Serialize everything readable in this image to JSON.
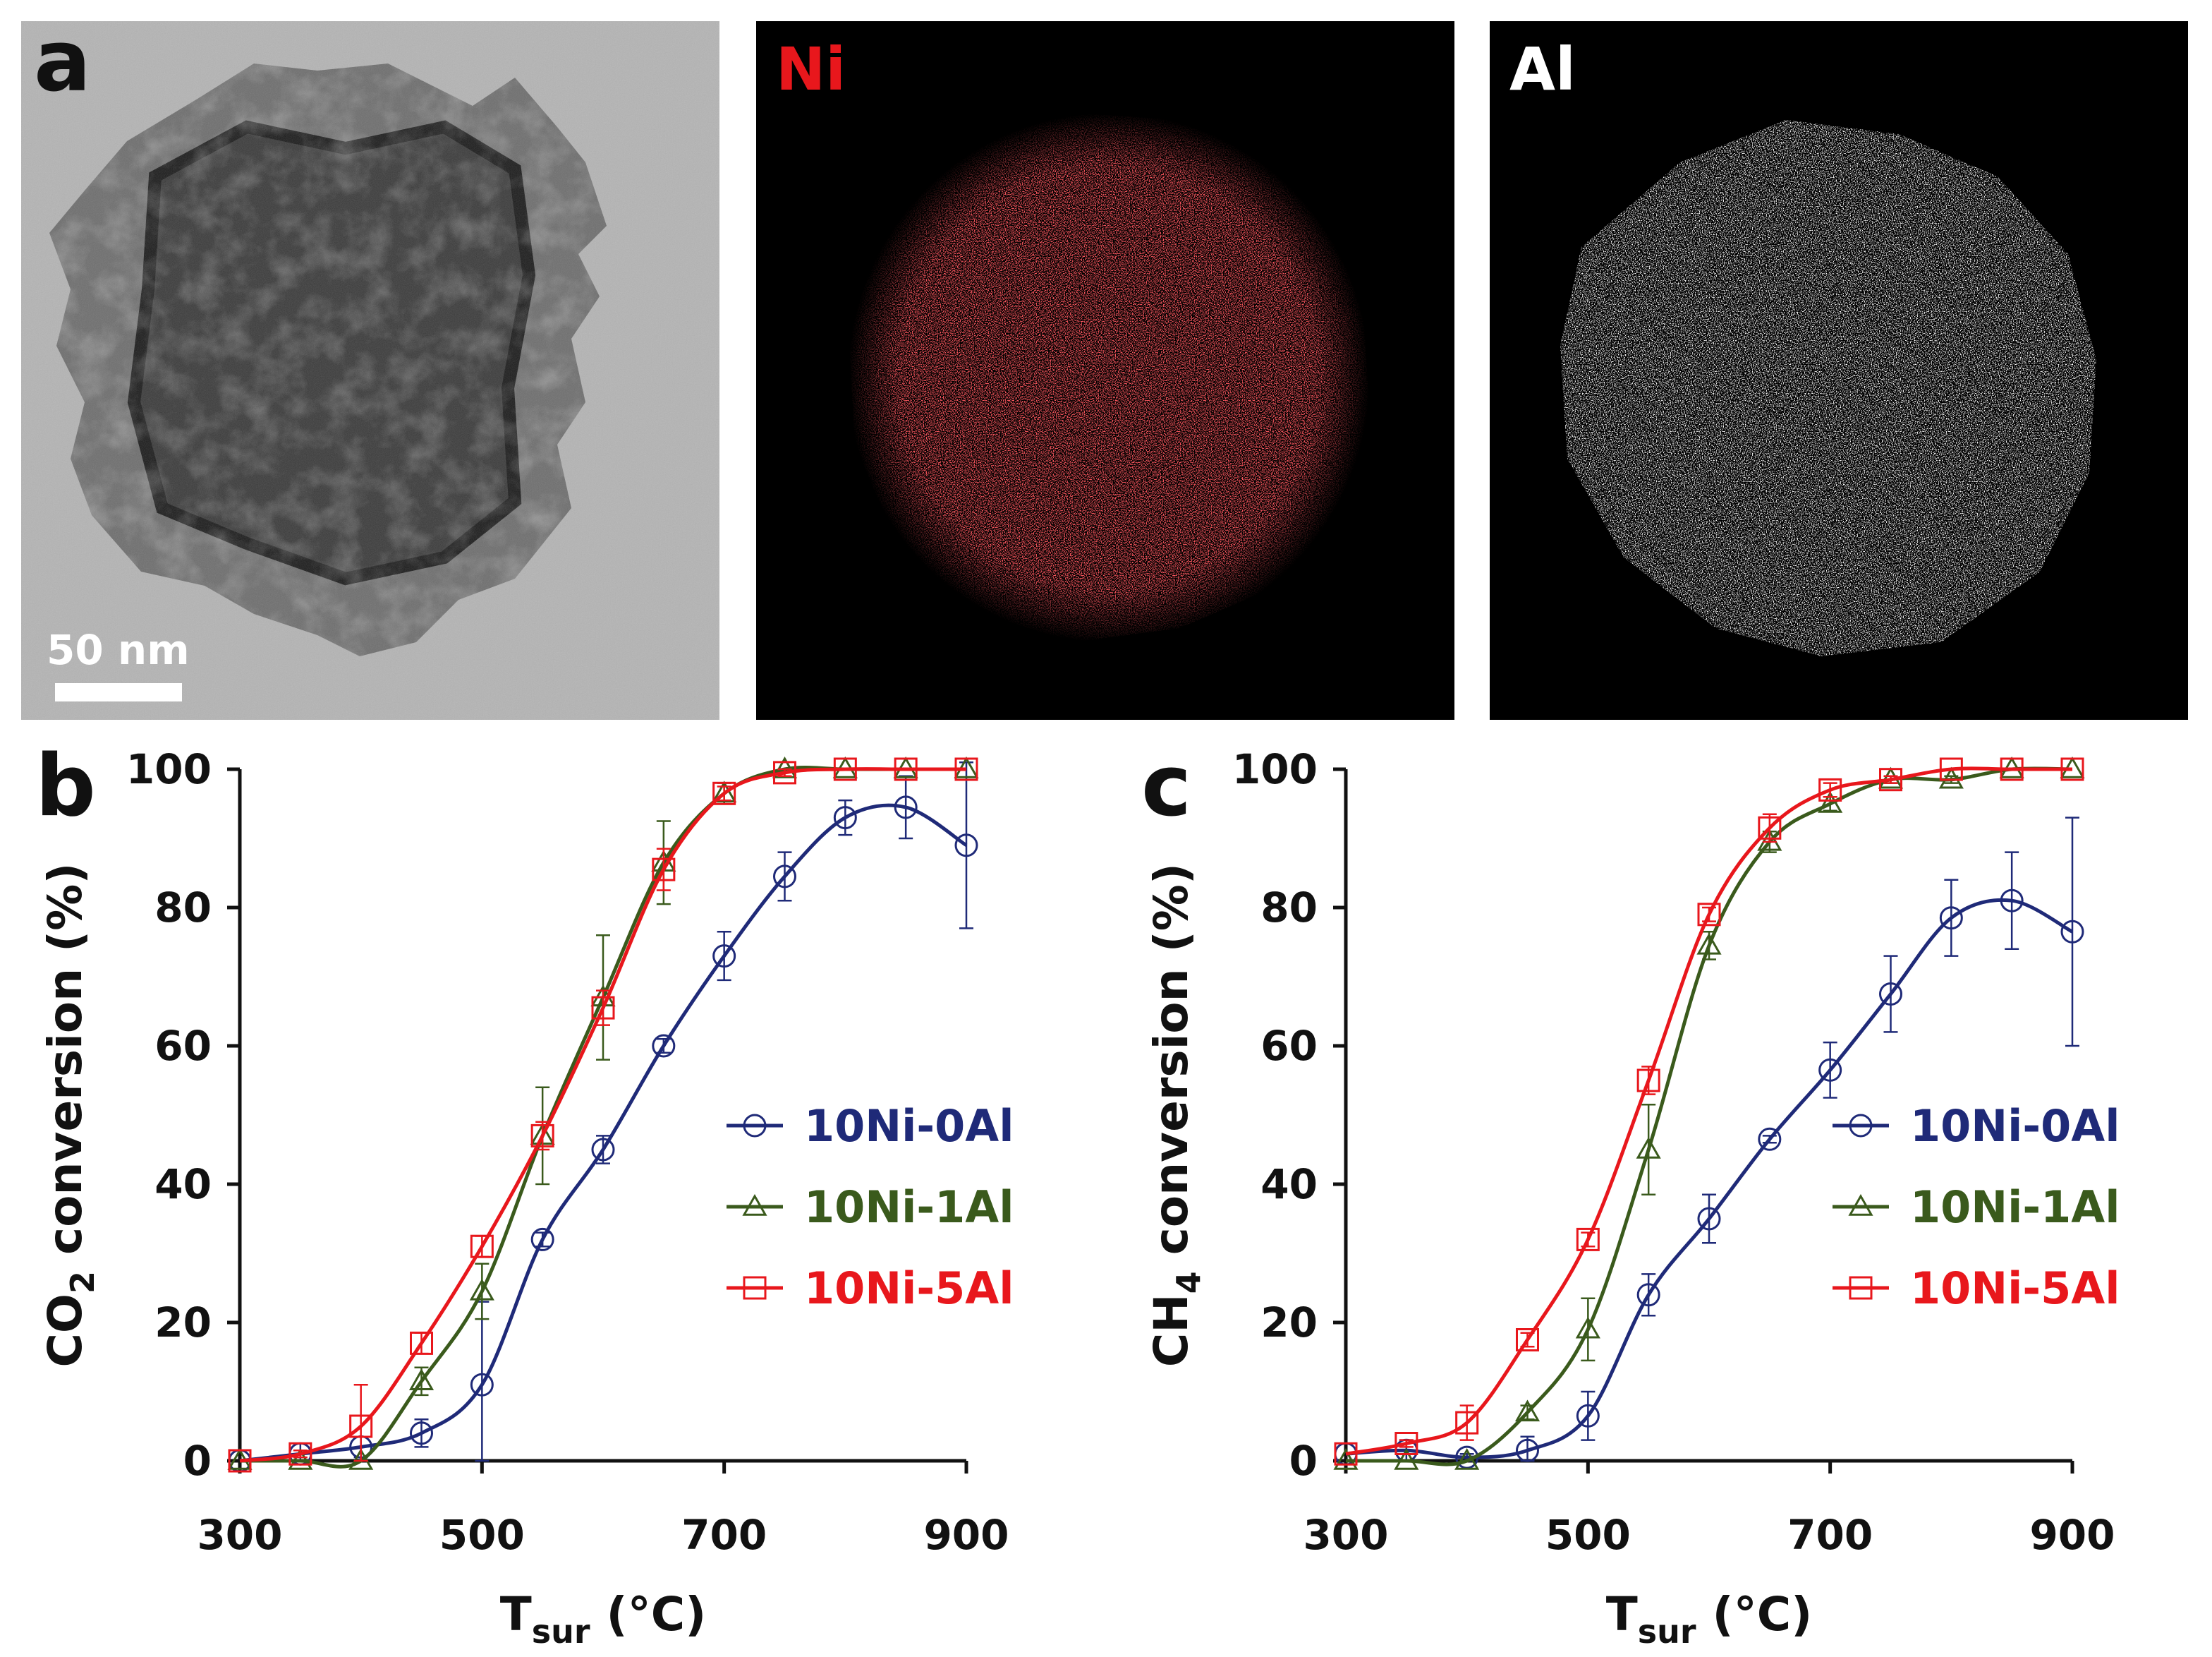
{
  "panels": {
    "a": {
      "letter": "a",
      "scale_bar_label": "50 nm",
      "maps": [
        {
          "label": "Ni",
          "color": "#e8171c"
        },
        {
          "label": "Al",
          "color": "#ffffff"
        }
      ]
    }
  },
  "chart_data": [
    {
      "panel": "b",
      "type": "line",
      "ylabel_parts": [
        "CO",
        "2",
        " conversion (%)"
      ],
      "xlabel_parts": [
        "T",
        "sur",
        " (°C)"
      ],
      "xlim": [
        300,
        900
      ],
      "ylim": [
        0,
        100
      ],
      "xticks": [
        300,
        500,
        700,
        900
      ],
      "yticks": [
        0,
        20,
        40,
        60,
        80,
        100
      ],
      "legend_position": "right-middle",
      "series": [
        {
          "name": "10Ni-0Al",
          "color": "#1f2a78",
          "marker": "circle",
          "x": [
            300,
            350,
            400,
            450,
            500,
            550,
            600,
            650,
            700,
            750,
            800,
            850,
            900
          ],
          "y": [
            0,
            1,
            2,
            4,
            11,
            32,
            45,
            60,
            73,
            84.5,
            93,
            94.5,
            89
          ],
          "err": [
            0,
            1.5,
            1.5,
            2,
            12,
            1,
            2,
            1,
            3.5,
            3.5,
            2.5,
            4.5,
            12
          ]
        },
        {
          "name": "10Ni-1Al",
          "color": "#3a5a1c",
          "marker": "triangle",
          "x": [
            300,
            350,
            400,
            450,
            500,
            550,
            600,
            650,
            700,
            750,
            800,
            850,
            900
          ],
          "y": [
            0,
            0,
            0,
            11.5,
            24.5,
            47,
            67,
            86.5,
            96.5,
            100,
            100,
            100,
            100
          ],
          "err": [
            0,
            0,
            0,
            2,
            4,
            7,
            9,
            6,
            1.5,
            0,
            0,
            0,
            0
          ]
        },
        {
          "name": "10Ni-5Al",
          "color": "#e8171c",
          "marker": "square",
          "x": [
            300,
            350,
            400,
            450,
            500,
            550,
            600,
            650,
            700,
            750,
            800,
            850,
            900
          ],
          "y": [
            0,
            1,
            5,
            17,
            31,
            47,
            65.5,
            85.5,
            96.5,
            99.5,
            100,
            100,
            100
          ],
          "err": [
            0,
            0.5,
            6,
            1.5,
            1.5,
            2,
            2.5,
            3,
            1,
            0.5,
            0,
            0,
            0
          ]
        }
      ]
    },
    {
      "panel": "c",
      "type": "line",
      "ylabel_parts": [
        "CH",
        "4",
        " conversion (%)"
      ],
      "xlabel_parts": [
        "T",
        "sur",
        " (°C)"
      ],
      "xlim": [
        300,
        900
      ],
      "ylim": [
        0,
        100
      ],
      "xticks": [
        300,
        500,
        700,
        900
      ],
      "yticks": [
        0,
        20,
        40,
        60,
        80,
        100
      ],
      "legend_position": "right-middle",
      "series": [
        {
          "name": "10Ni-0Al",
          "color": "#1f2a78",
          "marker": "circle",
          "x": [
            300,
            350,
            400,
            450,
            500,
            550,
            600,
            650,
            700,
            750,
            800,
            850,
            900
          ],
          "y": [
            1,
            1.5,
            0.5,
            1.5,
            6.5,
            24,
            35,
            46.5,
            56.5,
            67.5,
            78.5,
            81,
            76.5
          ],
          "err": [
            0,
            1.5,
            0.5,
            2,
            3.5,
            3,
            3.5,
            0.5,
            4,
            5.5,
            5.5,
            7,
            16.5
          ]
        },
        {
          "name": "10Ni-1Al",
          "color": "#3a5a1c",
          "marker": "triangle",
          "x": [
            300,
            350,
            400,
            450,
            500,
            550,
            600,
            650,
            700,
            750,
            800,
            850,
            900
          ],
          "y": [
            0,
            0,
            0,
            7,
            19,
            45,
            74.5,
            89.5,
            95,
            98.5,
            98.5,
            100,
            100
          ],
          "err": [
            0,
            0,
            0,
            1,
            4.5,
            6.5,
            2,
            1.5,
            1,
            0.5,
            0.5,
            0,
            0
          ]
        },
        {
          "name": "10Ni-5Al",
          "color": "#e8171c",
          "marker": "square",
          "x": [
            300,
            350,
            400,
            450,
            500,
            550,
            600,
            650,
            700,
            750,
            800,
            850,
            900
          ],
          "y": [
            1,
            2.5,
            5.5,
            17.5,
            32,
            55,
            79,
            91.5,
            97,
            98.5,
            100,
            100,
            100
          ],
          "err": [
            0,
            0.5,
            2.5,
            1,
            1,
            2,
            1,
            2,
            1,
            0.5,
            0,
            0,
            0
          ]
        }
      ]
    }
  ]
}
